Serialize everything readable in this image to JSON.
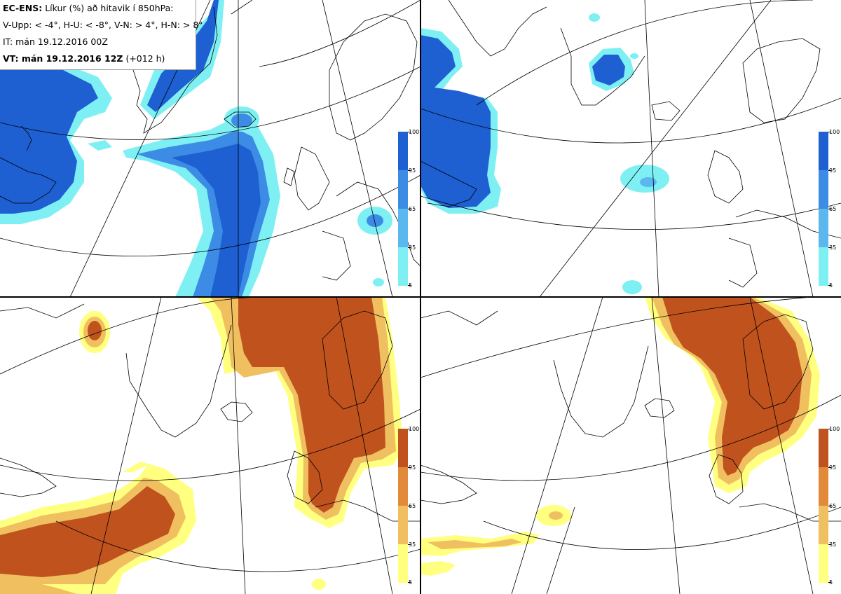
{
  "info": {
    "title_bold": "EC-ENS:",
    "title_rest": "Líkur (%) að hitavik í 850hPa:",
    "criteria": "V-Upp: < -4°, H-U: < -8°, V-N: > 4°, H-N: > 8°",
    "it": "IT: mán 19.12.2016 00Z",
    "vt_bold": "VT: mán 19.12.2016 12Z",
    "vt_rest": "(+012 h)"
  },
  "colorbar_top": {
    "ticks": [
      "100",
      "95",
      "65",
      "35",
      "5"
    ],
    "colors": [
      "#1e5fd2",
      "#3c8ce6",
      "#5ab8ee",
      "#7ef0f4"
    ]
  },
  "colorbar_bottom": {
    "ticks": [
      "100",
      "95",
      "65",
      "35",
      "5"
    ],
    "colors": [
      "#c0521e",
      "#e08a3a",
      "#f0c060",
      "#ffff80"
    ]
  },
  "colors": {
    "cold_1": "#7ef0f4",
    "cold_2": "#5ab8ee",
    "cold_3": "#1e5fd2",
    "warm_1": "#ffff80",
    "warm_2": "#f0c060",
    "warm_3": "#c0521e",
    "coast": "#000000",
    "grid": "#000000"
  }
}
